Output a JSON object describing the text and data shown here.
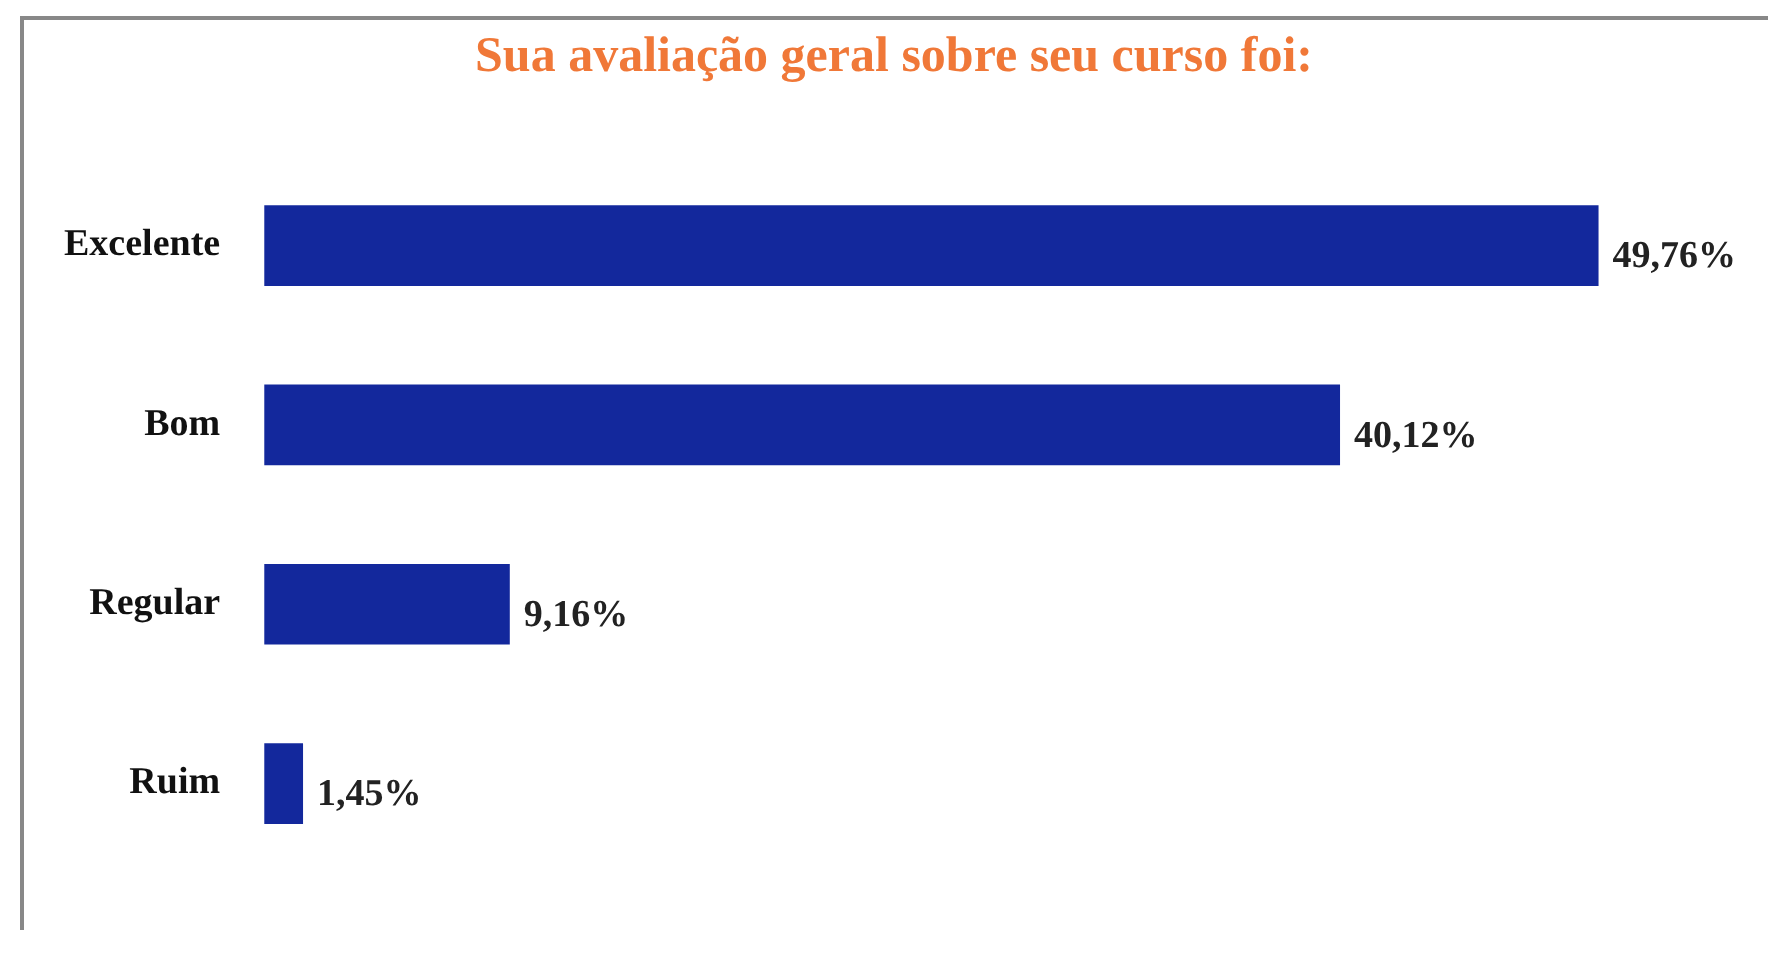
{
  "chart_data": {
    "type": "bar",
    "orientation": "horizontal",
    "title": "Sua avaliação geral sobre seu curso foi:",
    "categories": [
      "Excelente",
      "Bom",
      "Regular",
      "Ruim"
    ],
    "values": [
      49.76,
      40.12,
      9.16,
      1.45
    ],
    "value_labels": [
      "49,76%",
      "40,12%",
      "9,16%",
      "1,45%"
    ],
    "color": "#13289c"
  }
}
